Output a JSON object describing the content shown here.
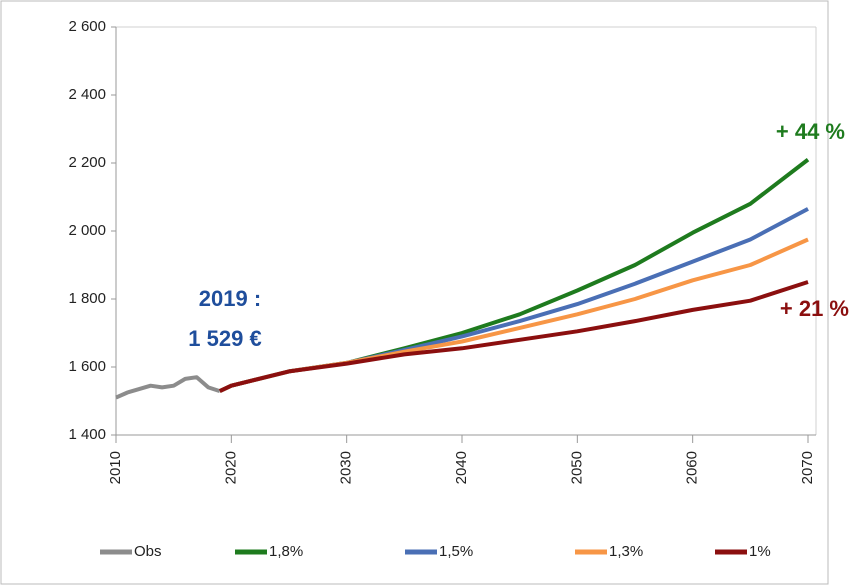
{
  "chart_data": {
    "type": "line",
    "x": [
      2010,
      2011,
      2012,
      2013,
      2014,
      2015,
      2016,
      2017,
      2018,
      2019,
      2020,
      2025,
      2030,
      2035,
      2040,
      2045,
      2050,
      2055,
      2060,
      2065,
      2070
    ],
    "series": [
      {
        "name": "Obs",
        "color": "#8c8c8c",
        "values": [
          1510,
          1525,
          1535,
          1545,
          1540,
          1545,
          1565,
          1570,
          1540,
          1529,
          null,
          null,
          null,
          null,
          null,
          null,
          null,
          null,
          null,
          null,
          null
        ]
      },
      {
        "name": "1,8%",
        "color": "#1e7b1e",
        "values": [
          null,
          null,
          null,
          null,
          null,
          null,
          null,
          null,
          null,
          1529,
          1545,
          1587,
          1612,
          1655,
          1700,
          1755,
          1825,
          1900,
          1995,
          2080,
          2210
        ]
      },
      {
        "name": "1,5%",
        "color": "#4a6fb5",
        "values": [
          null,
          null,
          null,
          null,
          null,
          null,
          null,
          null,
          null,
          1529,
          1545,
          1587,
          1612,
          1650,
          1690,
          1735,
          1785,
          1845,
          1910,
          1975,
          2065
        ]
      },
      {
        "name": "1,3%",
        "color": "#f79646",
        "values": [
          null,
          null,
          null,
          null,
          null,
          null,
          null,
          null,
          null,
          1529,
          1545,
          1587,
          1612,
          1645,
          1675,
          1715,
          1755,
          1800,
          1855,
          1900,
          1975
        ]
      },
      {
        "name": "1%",
        "color": "#8b0f0f",
        "values": [
          null,
          null,
          null,
          null,
          null,
          null,
          null,
          null,
          null,
          1529,
          1545,
          1587,
          1610,
          1637,
          1655,
          1680,
          1705,
          1735,
          1768,
          1795,
          1850
        ]
      }
    ],
    "xlim": [
      2010,
      2070
    ],
    "xticks": [
      2010,
      2020,
      2030,
      2040,
      2050,
      2060,
      2070
    ],
    "ylim": [
      1400,
      2600
    ],
    "yticks": [
      {
        "value": 1400,
        "label": "1 400"
      },
      {
        "value": 1600,
        "label": "1 600"
      },
      {
        "value": 1800,
        "label": "1 800"
      },
      {
        "value": 2000,
        "label": "2 000"
      },
      {
        "value": 2200,
        "label": "2 200"
      },
      {
        "value": 2400,
        "label": "2 400"
      },
      {
        "value": 2600,
        "label": "2 600"
      }
    ],
    "grid": false,
    "legend": "bottom",
    "annotations": [
      {
        "text": "2019 :",
        "color": "#1f4e9c"
      },
      {
        "text": "1 529 €",
        "color": "#1f4e9c"
      },
      {
        "text": "+ 44 %",
        "color": "#1e7b1e"
      },
      {
        "text": "+ 21 %",
        "color": "#8b0f0f"
      }
    ]
  }
}
